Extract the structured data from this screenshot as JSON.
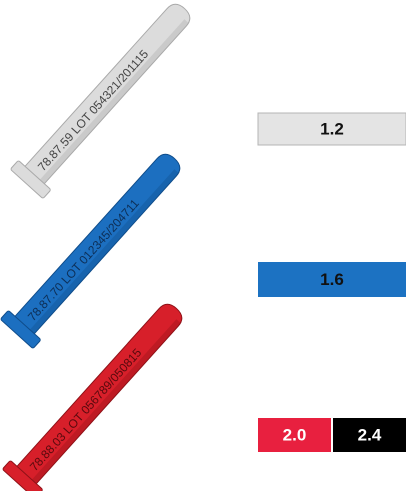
{
  "items": [
    {
      "engraving": "78.87.59 LOT 054321/201115",
      "sizes": [
        "1.2"
      ]
    },
    {
      "engraving": "78.87.70 LOT 012345/204711",
      "sizes": [
        "1.6"
      ]
    },
    {
      "engraving": "78.88.03 LOT 056789/050815",
      "sizes": [
        "2.0",
        "2.4"
      ]
    }
  ]
}
